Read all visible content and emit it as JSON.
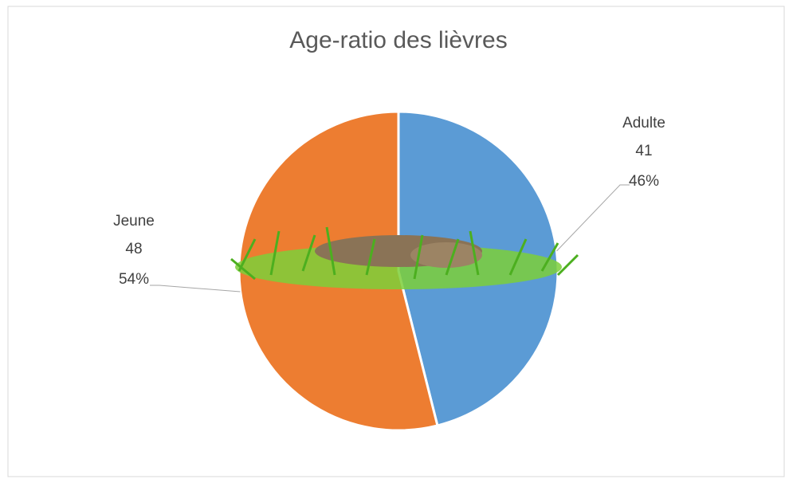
{
  "chart_data": {
    "type": "pie",
    "title": "Age-ratio des lièvres",
    "categories": [
      "Adulte",
      "Jeune"
    ],
    "values": [
      41,
      48
    ],
    "percent_labels": [
      "46%",
      "54%"
    ],
    "colors": [
      "#5b9bd5",
      "#ed7d31"
    ]
  }
}
